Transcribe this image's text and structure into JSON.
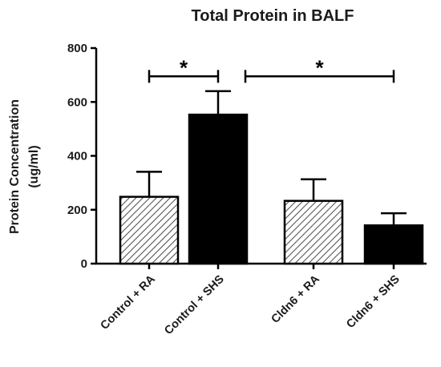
{
  "chart_data": {
    "type": "bar",
    "title": "Total Protein in BALF",
    "ylabel_line1": "Protein Concentration",
    "ylabel_line2": "(ug/ml)",
    "xlabel": "",
    "ylim": [
      0,
      800
    ],
    "yticks": [
      0,
      200,
      400,
      600,
      800
    ],
    "categories": [
      "Control + RA",
      "Control + SHS",
      "Cldn6 + RA",
      "Cldn6 + SHS"
    ],
    "values": [
      248,
      553,
      233,
      142
    ],
    "errors": [
      93,
      87,
      80,
      45
    ],
    "fills": [
      "hatched",
      "solid",
      "hatched",
      "solid"
    ],
    "colors": {
      "solid": "#000000",
      "hatch": "#555555",
      "axis": "#000000"
    },
    "significance": [
      {
        "from": 0,
        "to": 1,
        "y": 695,
        "label": "*"
      },
      {
        "from": 1,
        "to": 3,
        "y": 695,
        "label": "*"
      }
    ],
    "grid": false,
    "legend": "none"
  }
}
